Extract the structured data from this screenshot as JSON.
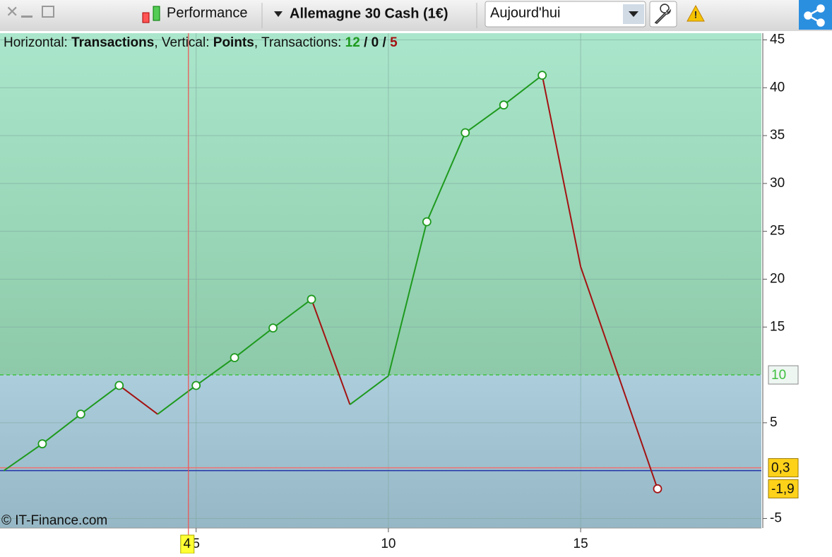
{
  "toolbar": {
    "indicator": "Performance",
    "instrument": "Allemagne 30 Cash (1€)",
    "period": "Aujourd'hui"
  },
  "chart_data": {
    "type": "line",
    "info": {
      "h_label": "Horizontal:",
      "h_value": "Transactions",
      "v_label": "Vertical:",
      "v_value": "Points",
      "t_label": "Transactions:",
      "wins": "12",
      "even": "0",
      "losses": "5"
    },
    "watermark": "© IT-Finance.com",
    "x": [
      0,
      1,
      2,
      3,
      4,
      5,
      6,
      7,
      8,
      9,
      10,
      11,
      12,
      13,
      14,
      15,
      17
    ],
    "values": [
      0,
      2.8,
      5.9,
      8.9,
      5.9,
      8.9,
      11.8,
      14.9,
      17.9,
      6.9,
      9.9,
      26.0,
      35.3,
      38.2,
      41.3,
      21.3,
      -1.9
    ],
    "markers": [
      1,
      2,
      3,
      5,
      6,
      7,
      8,
      11,
      12,
      13,
      14,
      16
    ],
    "up_color": "#1e9a1e",
    "down_color": "#a31212",
    "xlim": [
      -0.1,
      19.7
    ],
    "ylim": [
      -6,
      45.7
    ],
    "xticks": [
      5,
      10,
      15
    ],
    "yticks": [
      -5,
      5,
      15,
      20,
      25,
      30,
      35,
      40,
      45
    ],
    "grid": true,
    "levels": [
      {
        "value": 10,
        "label": "10",
        "color": "#3fbf3f"
      },
      {
        "value": 0.3,
        "label": "0,3",
        "color": "#f07070"
      },
      {
        "value": -1.9,
        "label": "-1,9",
        "color": null
      }
    ],
    "cursor": {
      "value": 4.8,
      "label": "4"
    }
  }
}
